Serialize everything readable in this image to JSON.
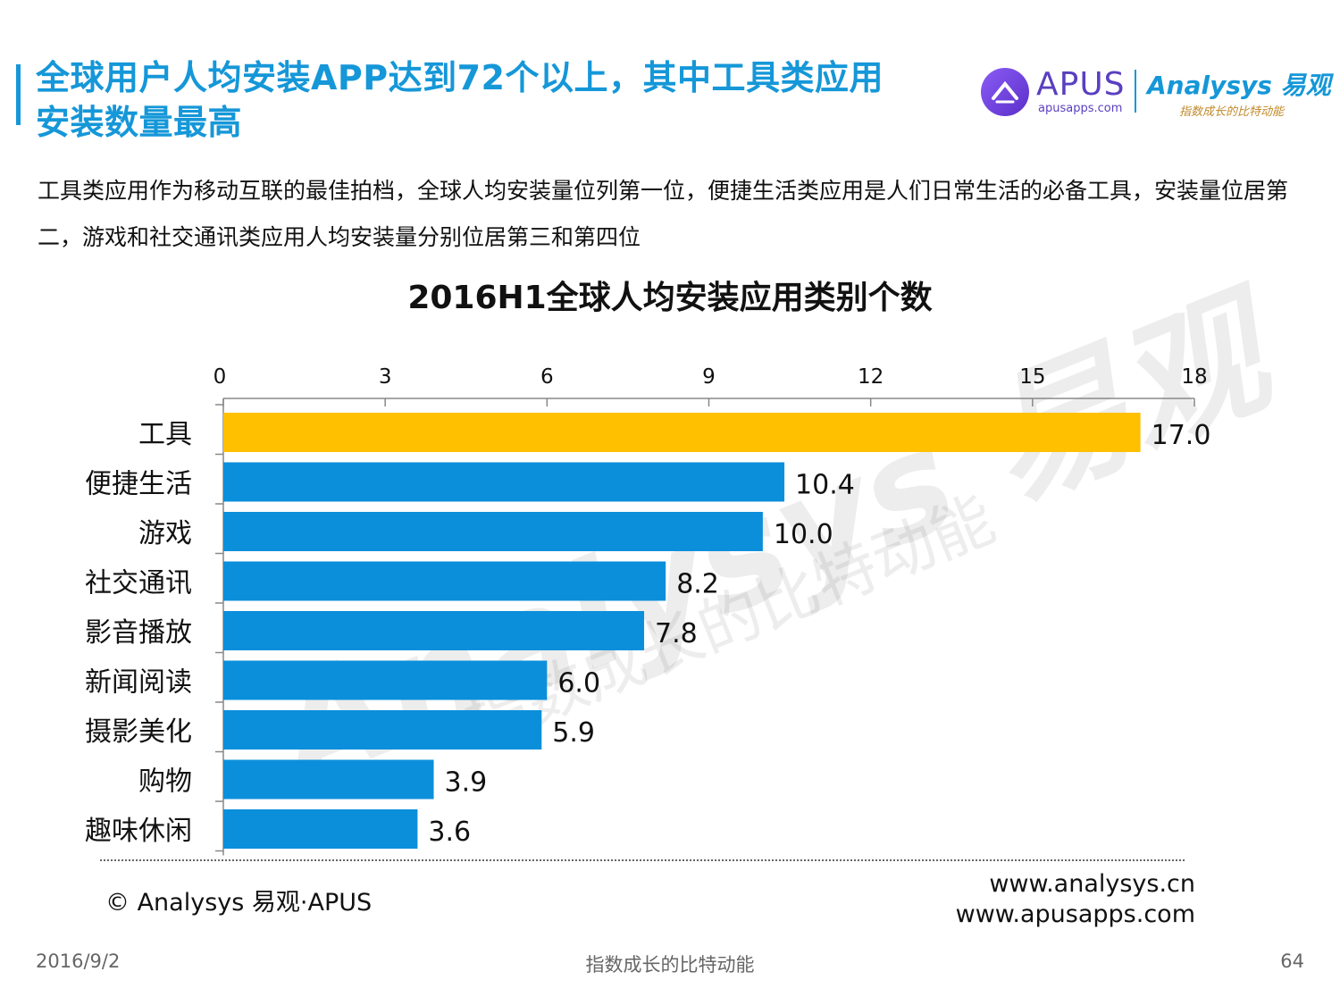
{
  "header": {
    "title_line1": "全球用户人均安装APP达到72个以上，其中工具类应用",
    "title_line2": "安装数量最高",
    "logo_apus": "APUS",
    "logo_apus_url": "apusapps.com",
    "logo_analysys": "Analysys 易观",
    "logo_analysys_slogan": "指数成长的比特动能"
  },
  "description": "工具类应用作为移动互联的最佳拍档，全球人均安装量位列第一位，便捷生活类应用是人们日常生活的必备工具，安装量位居第二，游戏和社交通讯类应用人均安装量分别位居第三和第四位",
  "watermark": {
    "main": "Analysys 易观",
    "sub": "指数成长的比特动能"
  },
  "chart_data": {
    "type": "bar",
    "orientation": "horizontal",
    "title": "2016H1全球人均安装应用类别个数",
    "categories": [
      "工具",
      "便捷生活",
      "游戏",
      "社交通讯",
      "影音播放",
      "新闻阅读",
      "摄影美化",
      "购物",
      "趣味休闲"
    ],
    "values": [
      17.0,
      10.4,
      10.0,
      8.2,
      7.8,
      6.0,
      5.9,
      3.9,
      3.6
    ],
    "value_labels": [
      "17.0",
      "10.4",
      "10.0",
      "8.2",
      "7.8",
      "6.0",
      "5.9",
      "3.9",
      "3.6"
    ],
    "xlim": [
      0,
      18
    ],
    "ticks": [
      0,
      3,
      6,
      9,
      12,
      15,
      18
    ],
    "axis_position": "top",
    "grid": false,
    "colors": {
      "highlight": "#FFC000",
      "default": "#0B8FDB"
    },
    "highlight_index": 0
  },
  "footer": {
    "copyright": "© Analysys 易观·APUS",
    "url1": "www.analysys.cn",
    "url2": "www.apusapps.com",
    "date": "2016/9/2",
    "slogan": "指数成长的比特动能",
    "page": "64"
  }
}
